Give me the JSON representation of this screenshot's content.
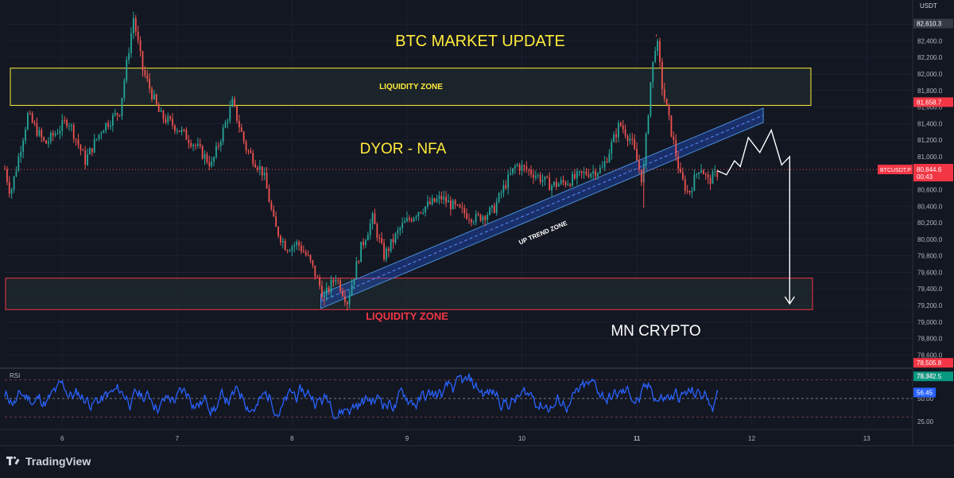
{
  "currency": "USDT",
  "brand": "TradingView",
  "title": "BTC MARKET UPDATE",
  "disclaimer": "DYOR - NFA",
  "signature": "MN CRYPTO",
  "annotations": {
    "liquidity_top": "LIQUIDITY ZONE",
    "liquidity_bottom": "LIQUIDITY ZONE",
    "trend_zone": "UP TREND ZONE",
    "rsi_label": "RSI"
  },
  "badges": {
    "high": "82,610.3",
    "zone_top": "81,658.7",
    "symbol": "BTCUSDT.P",
    "last_price": "80,844.6",
    "countdown": "00:43",
    "low": "78,505.8",
    "low2": "78,342.5",
    "rsi_value": "56.45"
  },
  "colors": {
    "background": "#131722",
    "up": "#26a69a",
    "down": "#ef5350",
    "title": "#ffeb3b",
    "zone_top_border": "#ffeb3b",
    "zone_bottom_border": "#f23645",
    "trend_channel": "#2962ff",
    "rsi_line": "#2962ff"
  },
  "chart_data": {
    "type": "candlestick",
    "symbol": "BTCUSDT.P",
    "currency": "USDT",
    "y_ticks": [
      78600,
      78800,
      79000,
      79200,
      79400,
      79600,
      79800,
      80000,
      80200,
      80400,
      80600,
      80800,
      81000,
      81200,
      81400,
      81600,
      81800,
      82000,
      82200,
      82400,
      82600
    ],
    "y_tick_labels": [
      "78,600.0",
      "78,800.0",
      "79,000.0",
      "79,200.0",
      "79,400.0",
      "79,600.0",
      "79,800.0",
      "80,000.0",
      "80,200.0",
      "80,400.0",
      "80,600.0",
      "80,800.0",
      "81,000.0",
      "81,200.0",
      "81,400.0",
      "81,600.0",
      "81,800.0",
      "82,000.0",
      "82,200.0",
      "82,400.0",
      "82,600.0"
    ],
    "ylim": [
      78450,
      82750
    ],
    "x_ticks": [
      "6",
      "7",
      "8",
      "9",
      "10",
      "11",
      "12",
      "13"
    ],
    "x_tick_positions_day": [
      6,
      7,
      8,
      9,
      10,
      11,
      12,
      13
    ],
    "xlim_day": [
      5.5,
      13.4
    ],
    "price_path": [
      {
        "day": 5.5,
        "price": 80850
      },
      {
        "day": 5.55,
        "price": 80550
      },
      {
        "day": 5.7,
        "price": 81500
      },
      {
        "day": 5.85,
        "price": 81150
      },
      {
        "day": 6.05,
        "price": 81450
      },
      {
        "day": 6.2,
        "price": 80950
      },
      {
        "day": 6.35,
        "price": 81350
      },
      {
        "day": 6.5,
        "price": 81550
      },
      {
        "day": 6.62,
        "price": 82680
      },
      {
        "day": 6.7,
        "price": 82050
      },
      {
        "day": 6.85,
        "price": 81500
      },
      {
        "day": 7.0,
        "price": 81350
      },
      {
        "day": 7.15,
        "price": 81150
      },
      {
        "day": 7.3,
        "price": 80900
      },
      {
        "day": 7.48,
        "price": 81650
      },
      {
        "day": 7.6,
        "price": 81100
      },
      {
        "day": 7.75,
        "price": 80800
      },
      {
        "day": 7.85,
        "price": 80150
      },
      {
        "day": 7.95,
        "price": 79900
      },
      {
        "day": 8.05,
        "price": 79950
      },
      {
        "day": 8.15,
        "price": 79750
      },
      {
        "day": 8.28,
        "price": 79300
      },
      {
        "day": 8.38,
        "price": 79550
      },
      {
        "day": 8.48,
        "price": 79250
      },
      {
        "day": 8.6,
        "price": 79900
      },
      {
        "day": 8.7,
        "price": 80250
      },
      {
        "day": 8.8,
        "price": 79800
      },
      {
        "day": 8.95,
        "price": 80150
      },
      {
        "day": 9.1,
        "price": 80350
      },
      {
        "day": 9.3,
        "price": 80500
      },
      {
        "day": 9.45,
        "price": 80350
      },
      {
        "day": 9.6,
        "price": 80250
      },
      {
        "day": 9.75,
        "price": 80350
      },
      {
        "day": 9.85,
        "price": 80650
      },
      {
        "day": 9.95,
        "price": 80900
      },
      {
        "day": 10.1,
        "price": 80800
      },
      {
        "day": 10.25,
        "price": 80650
      },
      {
        "day": 10.4,
        "price": 80700
      },
      {
        "day": 10.55,
        "price": 80800
      },
      {
        "day": 10.7,
        "price": 80850
      },
      {
        "day": 10.85,
        "price": 81400
      },
      {
        "day": 10.95,
        "price": 81200
      },
      {
        "day": 11.05,
        "price": 80700
      },
      {
        "day": 11.12,
        "price": 81900
      },
      {
        "day": 11.17,
        "price": 82450
      },
      {
        "day": 11.22,
        "price": 81850
      },
      {
        "day": 11.3,
        "price": 81300
      },
      {
        "day": 11.38,
        "price": 80750
      },
      {
        "day": 11.45,
        "price": 80550
      },
      {
        "day": 11.55,
        "price": 80900
      },
      {
        "day": 11.62,
        "price": 80700
      },
      {
        "day": 11.7,
        "price": 80800
      }
    ],
    "projection": [
      {
        "day": 11.7,
        "price": 80830
      },
      {
        "day": 11.78,
        "price": 80780
      },
      {
        "day": 11.85,
        "price": 80950
      },
      {
        "day": 11.9,
        "price": 80880
      },
      {
        "day": 11.97,
        "price": 81230
      },
      {
        "day": 12.07,
        "price": 81050
      },
      {
        "day": 12.17,
        "price": 81320
      },
      {
        "day": 12.26,
        "price": 80900
      },
      {
        "day": 12.33,
        "price": 81000
      },
      {
        "day": 12.33,
        "price": 79220
      }
    ],
    "zones": {
      "top_liquidity": {
        "low": 81620,
        "high": 82070
      },
      "bottom_liquidity": {
        "low": 79150,
        "high": 79530
      }
    },
    "trend_channel": {
      "start_day": 8.25,
      "start_price": 79250,
      "end_day": 12.1,
      "end_price": 81500
    },
    "rsi": {
      "label": "RSI",
      "current": 56.45,
      "levels": [
        70,
        50,
        30
      ],
      "tick_labels": [
        "75.00",
        "50.00",
        "25.00"
      ],
      "ylim": [
        20,
        80
      ]
    }
  }
}
